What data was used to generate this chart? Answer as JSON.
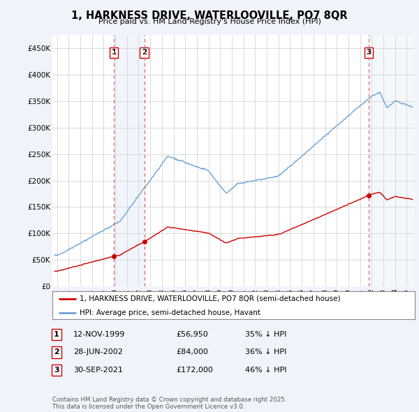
{
  "title": "1, HARKNESS DRIVE, WATERLOOVILLE, PO7 8QR",
  "subtitle": "Price paid vs. HM Land Registry's House Price Index (HPI)",
  "legend_line1": "1, HARKNESS DRIVE, WATERLOOVILLE, PO7 8QR (semi-detached house)",
  "legend_line2": "HPI: Average price, semi-detached house, Havant",
  "footer": "Contains HM Land Registry data © Crown copyright and database right 2025.\nThis data is licensed under the Open Government Licence v3.0.",
  "sale_color": "#cc0000",
  "hpi_color": "#6ba3d6",
  "background_color": "#f0f4fa",
  "plot_bg_color": "#ffffff",
  "ylim": [
    0,
    475000
  ],
  "yticks": [
    0,
    50000,
    100000,
    150000,
    200000,
    250000,
    300000,
    350000,
    400000,
    450000
  ],
  "ytick_labels": [
    "£0",
    "£50K",
    "£100K",
    "£150K",
    "£200K",
    "£250K",
    "£300K",
    "£350K",
    "£400K",
    "£450K"
  ],
  "sales": [
    {
      "date": 1999.87,
      "price": 56950,
      "label": "1"
    },
    {
      "date": 2002.49,
      "price": 84000,
      "label": "2"
    },
    {
      "date": 2021.75,
      "price": 172000,
      "label": "3"
    }
  ],
  "sale_annotations": [
    {
      "label": "1",
      "date": "12-NOV-1999",
      "price": "£56,950",
      "note": "35% ↓ HPI"
    },
    {
      "label": "2",
      "date": "28-JUN-2002",
      "price": "£84,000",
      "note": "36% ↓ HPI"
    },
    {
      "label": "3",
      "date": "30-SEP-2021",
      "price": "£172,000",
      "note": "46% ↓ HPI"
    }
  ],
  "vline_color": "#dd6666",
  "vbox_color": "#dce8f5",
  "xlim_left": 1994.6,
  "xlim_right": 2025.7
}
